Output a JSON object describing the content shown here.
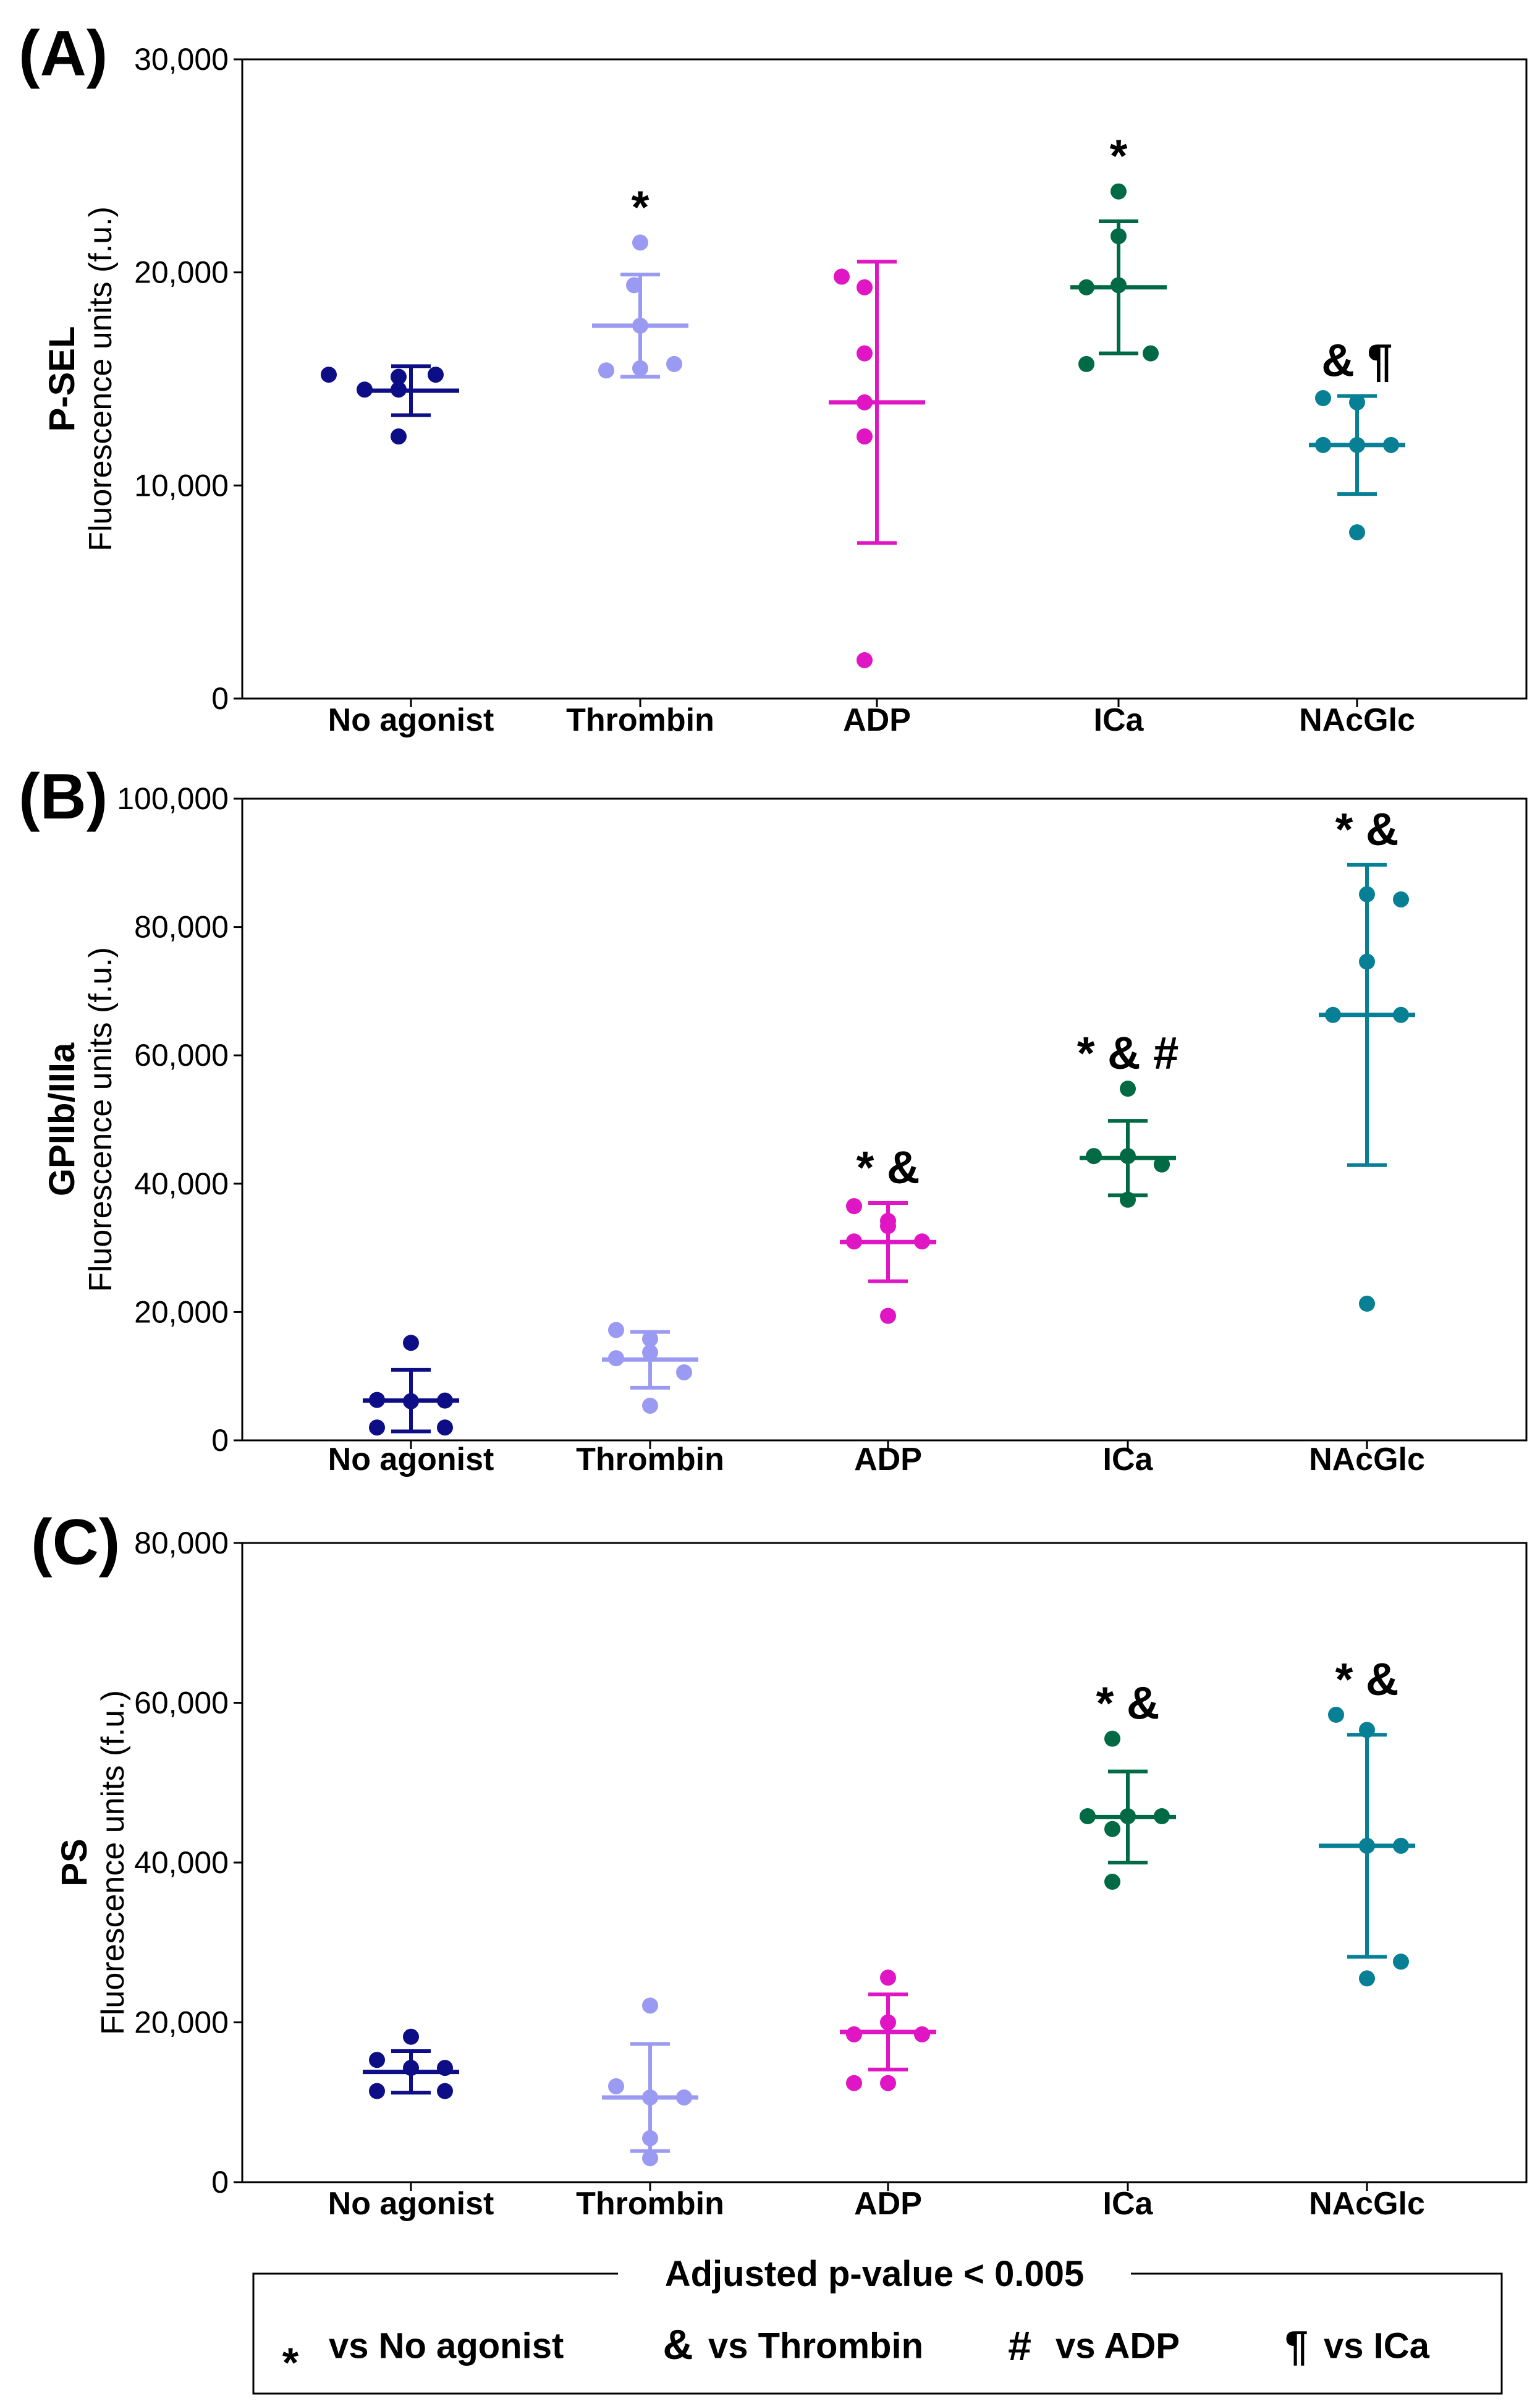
{
  "colors": {
    "No agonist": "#0d0d86",
    "Thrombin": "#9a9af2",
    "ADP": "#e015c4",
    "ICa": "#006a45",
    "NAcGlc": "#077f94"
  },
  "chart_data": [
    {
      "type": "scatter",
      "panel": "(A)",
      "ylabel_main": "P-SEL",
      "ylabel_sub": "Fluorescence units (f.u.)",
      "ylim": [
        0,
        30000
      ],
      "yticks": [
        0,
        10000,
        20000,
        30000
      ],
      "ytick_labels": [
        "0",
        "10,000",
        "20,000",
        "30,000"
      ],
      "categories": [
        "No agonist",
        "Thrombin",
        "ADP",
        "ICa",
        "NAcGlc"
      ],
      "groups": [
        {
          "name": "No agonist",
          "points": [
            15200,
            14500,
            15100,
            14500,
            15200,
            12300
          ],
          "mean": 14450,
          "sd_low": 13300,
          "sd_high": 15600,
          "annotation": ""
        },
        {
          "name": "Thrombin",
          "points": [
            21400,
            19400,
            17500,
            15400,
            15700,
            15500
          ],
          "mean": 17500,
          "sd_low": 15100,
          "sd_high": 19900,
          "annotation": "*"
        },
        {
          "name": "ADP",
          "points": [
            19800,
            19300,
            16200,
            13900,
            12300,
            1800
          ],
          "mean": 13900,
          "sd_low": 7300,
          "sd_high": 20500,
          "annotation": ""
        },
        {
          "name": "ICa",
          "points": [
            23800,
            21700,
            19300,
            19400,
            15700,
            16200
          ],
          "mean": 19300,
          "sd_low": 16200,
          "sd_high": 22400,
          "annotation": "*"
        },
        {
          "name": "NAcGlc",
          "points": [
            14100,
            13900,
            11900,
            11900,
            11900,
            7800
          ],
          "mean": 11900,
          "sd_low": 9600,
          "sd_high": 14200,
          "annotation": "& ¶"
        }
      ]
    },
    {
      "type": "scatter",
      "panel": "(B)",
      "ylabel_main": "GPIIb/IIIa",
      "ylabel_sub": "Fluorescence units (f.u.)",
      "ylim": [
        0,
        100000
      ],
      "yticks": [
        0,
        20000,
        40000,
        60000,
        80000,
        100000
      ],
      "ytick_labels": [
        "0",
        "20,000",
        "40,000",
        "60,000",
        "80,000",
        "100,000"
      ],
      "categories": [
        "No agonist",
        "Thrombin",
        "ADP",
        "ICa",
        "NAcGlc"
      ],
      "groups": [
        {
          "name": "No agonist",
          "points": [
            15200,
            6300,
            6100,
            6200,
            2000,
            2000
          ],
          "mean": 6200,
          "sd_low": 1400,
          "sd_high": 11000,
          "annotation": ""
        },
        {
          "name": "Thrombin",
          "points": [
            17200,
            15800,
            13700,
            12800,
            10600,
            5400
          ],
          "mean": 12600,
          "sd_low": 8200,
          "sd_high": 16900,
          "annotation": ""
        },
        {
          "name": "ADP",
          "points": [
            36500,
            34200,
            33400,
            31000,
            31000,
            19400
          ],
          "mean": 30900,
          "sd_low": 24800,
          "sd_high": 37000,
          "annotation": "* &"
        },
        {
          "name": "ICa",
          "points": [
            54800,
            44300,
            44300,
            43000,
            43000,
            37500
          ],
          "mean": 44000,
          "sd_low": 38200,
          "sd_high": 49800,
          "annotation": "* & #"
        },
        {
          "name": "NAcGlc",
          "points": [
            85100,
            84300,
            74600,
            66300,
            66300,
            21300
          ],
          "mean": 66300,
          "sd_low": 42900,
          "sd_high": 89700,
          "annotation": "* &"
        }
      ]
    },
    {
      "type": "scatter",
      "panel": "(C)",
      "ylabel_main": "PS",
      "ylabel_sub": "Fluorescence units (f.u.)",
      "ylim": [
        0,
        80000
      ],
      "yticks": [
        0,
        20000,
        40000,
        60000,
        80000
      ],
      "ytick_labels": [
        "0",
        "20,000",
        "40,000",
        "60,000",
        "80,000"
      ],
      "categories": [
        "No agonist",
        "Thrombin",
        "ADP",
        "ICa",
        "NAcGlc"
      ],
      "groups": [
        {
          "name": "No agonist",
          "points": [
            18200,
            15300,
            14300,
            14300,
            11400,
            11400
          ],
          "mean": 13800,
          "sd_low": 11200,
          "sd_high": 16400,
          "annotation": ""
        },
        {
          "name": "Thrombin",
          "points": [
            22100,
            12000,
            10600,
            10600,
            5500,
            3000
          ],
          "mean": 10600,
          "sd_low": 3900,
          "sd_high": 17300,
          "annotation": ""
        },
        {
          "name": "ADP",
          "points": [
            25600,
            20000,
            18500,
            18500,
            12400,
            12400
          ],
          "mean": 18800,
          "sd_low": 14100,
          "sd_high": 23500,
          "annotation": ""
        },
        {
          "name": "ICa",
          "points": [
            55500,
            45800,
            45800,
            45800,
            44200,
            37600
          ],
          "mean": 45700,
          "sd_low": 40000,
          "sd_high": 51400,
          "annotation": "* &"
        },
        {
          "name": "NAcGlc",
          "points": [
            58500,
            56600,
            42100,
            42100,
            27600,
            25500
          ],
          "mean": 42100,
          "sd_low": 28200,
          "sd_high": 56000,
          "annotation": "* &"
        }
      ]
    }
  ],
  "legend": {
    "title": "Adjusted p-value < 0.005",
    "items": [
      {
        "symbol": "*",
        "label": "vs No agonist"
      },
      {
        "symbol": "&",
        "label": "vs Thrombin"
      },
      {
        "symbol": "#",
        "label": "vs ADP"
      },
      {
        "symbol": "¶",
        "label": "vs ICa"
      }
    ]
  }
}
